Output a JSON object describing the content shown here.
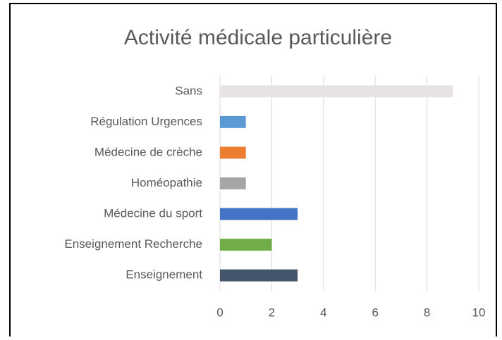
{
  "chart_data": {
    "type": "barh",
    "title": "Activité médicale particulière",
    "categories": [
      "Sans",
      "Régulation Urgences",
      "Médecine de crèche",
      "Homéopathie",
      "Médecine du sport",
      "Enseignement Recherche",
      "Enseignement"
    ],
    "values": [
      9,
      1,
      1,
      1,
      3,
      2,
      3
    ],
    "colors": [
      "#e7e3e3",
      "#5b9bd5",
      "#ed7d31",
      "#a5a5a5",
      "#4472c4",
      "#70ad47",
      "#44546a"
    ],
    "xlim": [
      0,
      10
    ],
    "xticks": [
      0,
      2,
      4,
      6,
      8,
      10
    ],
    "grid": true
  }
}
